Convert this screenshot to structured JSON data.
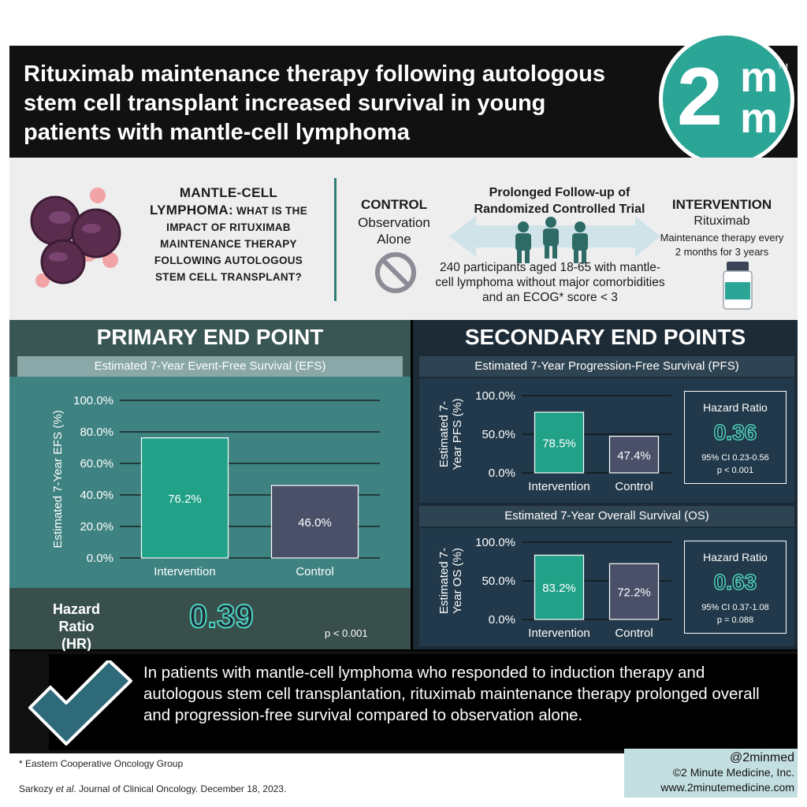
{
  "header": {
    "title": "Rituximab maintenance therapy following autologous stem cell transplant increased survival in young patients with mantle-cell lymphoma",
    "logo": {
      "numeral": "2",
      "letter_top": "m",
      "letter_bottom": "m",
      "tm": "TM"
    }
  },
  "design": {
    "question_lead": "MANTLE-CELL LYMPHOMA:",
    "question_rest": " WHAT IS THE IMPACT OF RITUXIMAB MAINTENANCE THERAPY FOLLOWING AUTOLOGOUS STEM CELL TRANSPLANT?",
    "control_heading": "CONTROL",
    "control_line1": "Observation",
    "control_line2": "Alone",
    "trial_line1": "Prolonged Follow-up of",
    "trial_line2": "Randomized Controlled Trial",
    "participants_line1": "240 participants aged 18-65 with mantle-",
    "participants_line2": "cell lymphoma without major comorbidities",
    "participants_line3": "and an ECOG* score < 3",
    "intervention_heading": "INTERVENTION",
    "intervention_drug": "Rituximab",
    "intervention_line1": "Maintenance therapy every",
    "intervention_line2": "2 months for 3 years"
  },
  "primary": {
    "title": "PRIMARY END POINT",
    "subtitle": "Estimated 7-Year Event-Free Survival (EFS)",
    "hr_label_1": "Hazard Ratio",
    "hr_label_2": "(HR)",
    "hr_value": "0.39",
    "p_value": "p < 0.001"
  },
  "secondary": {
    "title": "SECONDARY END POINTS",
    "pfs_subtitle": "Estimated 7-Year Progression-Free Survival (PFS)",
    "os_subtitle": "Estimated 7-Year Overall Survival (OS)",
    "pfs_hr": {
      "title": "Hazard Ratio",
      "value": "0.36",
      "ci": "95% CI 0.23-0.56",
      "p": "p < 0.001"
    },
    "os_hr": {
      "title": "Hazard Ratio",
      "value": "0.63",
      "ci": "95% CI 0.37-1.08",
      "p": "p = 0.088"
    }
  },
  "chart_data": [
    {
      "type": "bar",
      "title": "Estimated 7-Year Event-Free Survival (EFS)",
      "ylabel": "Estimated 7-Year EFS (%)",
      "categories": [
        "Intervention",
        "Control"
      ],
      "values": [
        76.2,
        46.0
      ],
      "value_labels": [
        "76.2%",
        "46.0%"
      ],
      "colors": [
        "#21a188",
        "#4a5068"
      ],
      "ylim": [
        0,
        100
      ],
      "yticks": [
        "0.0%",
        "20.0%",
        "40.0%",
        "60.0%",
        "80.0%",
        "100.0%"
      ],
      "grid": true
    },
    {
      "type": "bar",
      "title": "Estimated 7-Year Progression-Free Survival (PFS)",
      "ylabel_1": "Estimated 7-",
      "ylabel_2": "Year PFS (%)",
      "categories": [
        "Intervention",
        "Control"
      ],
      "values": [
        78.5,
        47.4
      ],
      "value_labels": [
        "78.5%",
        "47.4%"
      ],
      "colors": [
        "#21a188",
        "#4a5068"
      ],
      "ylim": [
        0,
        100
      ],
      "yticks": [
        "0.0%",
        "50.0%",
        "100.0%"
      ],
      "grid": true
    },
    {
      "type": "bar",
      "title": "Estimated 7-Year Overall Survival (OS)",
      "ylabel_1": "Estimated 7-",
      "ylabel_2": "Year OS (%)",
      "categories": [
        "Intervention",
        "Control"
      ],
      "values": [
        83.2,
        72.2
      ],
      "value_labels": [
        "83.2%",
        "72.2%"
      ],
      "colors": [
        "#21a188",
        "#4a5068"
      ],
      "ylim": [
        0,
        100
      ],
      "yticks": [
        "0.0%",
        "50.0%",
        "100.0%"
      ],
      "grid": true
    }
  ],
  "conclusion": {
    "text": "In patients with mantle-cell lymphoma who responded to induction therapy and autologous stem cell transplantation, rituximab maintenance therapy prolonged overall and progression-free survival compared to observation alone."
  },
  "footer": {
    "footnote": "* Eastern Cooperative Oncology Group",
    "citation_author": "Sarkozy ",
    "citation_etal": "et al",
    "citation_rest": ". Journal of Clinical Oncology. December 18, 2023.",
    "handle": "@2minmed",
    "copyright": "©2 Minute Medicine, Inc.",
    "website": "www.2minutemedicine.com"
  },
  "colors": {
    "teal": "#2aa596",
    "intervention_bar": "#21a188",
    "control_bar": "#4a5068",
    "primary_panel": "#3e8281",
    "secondary_panel": "#1d2b37"
  }
}
